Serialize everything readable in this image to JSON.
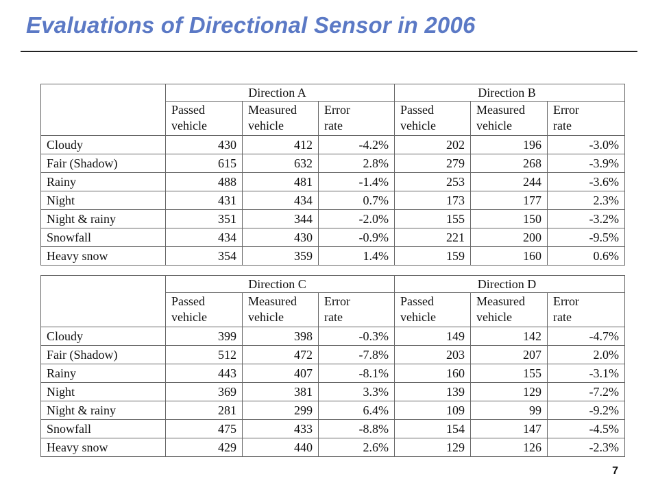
{
  "slide": {
    "title": "Evaluations of Directional Sensor in 2006",
    "page_number": "7"
  },
  "header_labels": {
    "passed": "Passed vehicle",
    "measured": "Measured vehicle",
    "error": "Error rate"
  },
  "tables": [
    {
      "directions": [
        "Direction A",
        "Direction B"
      ],
      "rows": [
        {
          "condition": "Cloudy",
          "values": [
            "430",
            "412",
            "-4.2%",
            "202",
            "196",
            "-3.0%"
          ]
        },
        {
          "condition": "Fair (Shadow)",
          "values": [
            "615",
            "632",
            "2.8%",
            "279",
            "268",
            "-3.9%"
          ]
        },
        {
          "condition": "Rainy",
          "values": [
            "488",
            "481",
            "-1.4%",
            "253",
            "244",
            "-3.6%"
          ]
        },
        {
          "condition": "Night",
          "values": [
            "431",
            "434",
            "0.7%",
            "173",
            "177",
            "2.3%"
          ]
        },
        {
          "condition": "Night & rainy",
          "values": [
            "351",
            "344",
            "-2.0%",
            "155",
            "150",
            "-3.2%"
          ]
        },
        {
          "condition": "Snowfall",
          "values": [
            "434",
            "430",
            "-0.9%",
            "221",
            "200",
            "-9.5%"
          ]
        },
        {
          "condition": "Heavy snow",
          "values": [
            "354",
            "359",
            "1.4%",
            "159",
            "160",
            "0.6%"
          ]
        }
      ]
    },
    {
      "directions": [
        "Direction C",
        "Direction D"
      ],
      "rows": [
        {
          "condition": "Cloudy",
          "values": [
            "399",
            "398",
            "-0.3%",
            "149",
            "142",
            "-4.7%"
          ]
        },
        {
          "condition": "Fair (Shadow)",
          "values": [
            "512",
            "472",
            "-7.8%",
            "203",
            "207",
            "2.0%"
          ]
        },
        {
          "condition": "Rainy",
          "values": [
            "443",
            "407",
            "-8.1%",
            "160",
            "155",
            "-3.1%"
          ]
        },
        {
          "condition": "Night",
          "values": [
            "369",
            "381",
            "3.3%",
            "139",
            "129",
            "-7.2%"
          ]
        },
        {
          "condition": "Night & rainy",
          "values": [
            "281",
            "299",
            "6.4%",
            "109",
            "99",
            "-9.2%"
          ]
        },
        {
          "condition": "Snowfall",
          "values": [
            "475",
            "433",
            "-8.8%",
            "154",
            "147",
            "-4.5%"
          ]
        },
        {
          "condition": "Heavy snow",
          "values": [
            "429",
            "440",
            "2.6%",
            "129",
            "126",
            "-2.3%"
          ]
        }
      ]
    }
  ]
}
